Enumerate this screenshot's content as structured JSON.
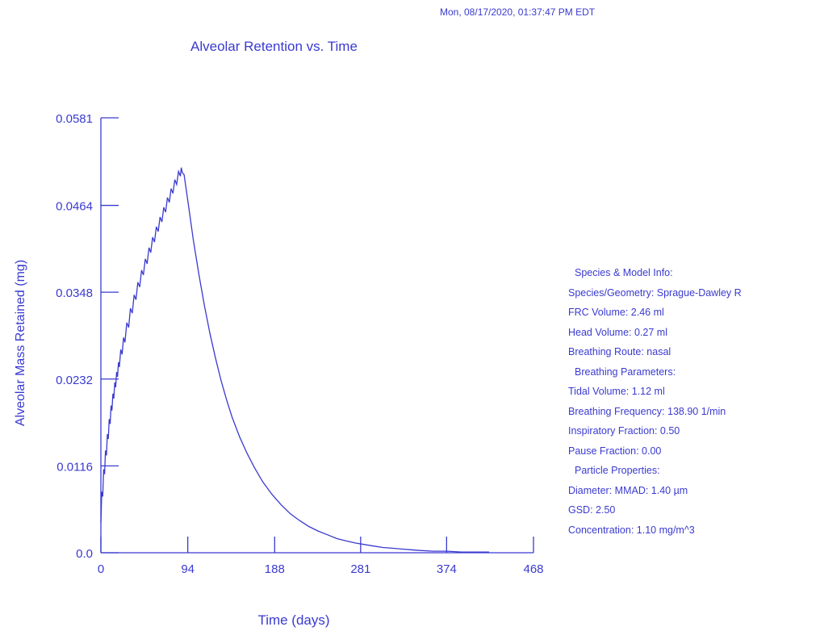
{
  "timestamp": "Mon, 08/17/2020, 01:37:47 PM EDT",
  "colors": {
    "ink": "#3a3ad0",
    "background": "#ffffff"
  },
  "chart_data": {
    "type": "line",
    "title": "Alveolar Retention vs. Time",
    "xlabel": "Time (days)",
    "ylabel": "Alveolar Mass Retained (mg)",
    "xlim": [
      0,
      468
    ],
    "ylim": [
      0,
      0.0581
    ],
    "x_ticks": [
      "0",
      "94",
      "188",
      "281",
      "374",
      "468"
    ],
    "y_ticks": [
      "0.0",
      "0.0116",
      "0.0232",
      "0.0348",
      "0.0464",
      "0.0581"
    ],
    "x_tick_values": [
      0,
      94,
      188,
      281,
      374,
      468
    ],
    "y_tick_values": [
      0,
      0.0116,
      0.0232,
      0.0348,
      0.0464,
      0.0581
    ],
    "grid": false,
    "legend": "none",
    "series": [
      {
        "x": [
          0,
          2,
          4,
          6,
          8,
          10,
          12,
          14,
          16,
          18,
          20,
          23,
          26,
          30,
          34,
          38,
          42,
          46,
          50,
          54,
          58,
          62,
          66,
          70,
          74,
          78,
          82,
          86,
          88,
          90,
          95,
          100,
          106,
          112,
          118,
          124,
          130,
          136,
          142,
          150,
          158,
          166,
          175,
          185,
          195,
          205,
          215,
          225,
          235,
          245,
          255,
          265,
          275,
          285,
          295,
          305,
          315,
          325,
          335,
          345,
          360,
          375,
          390,
          405,
          420
        ],
        "y": [
          0.004,
          0.0075,
          0.0105,
          0.013,
          0.0152,
          0.0172,
          0.019,
          0.0206,
          0.0221,
          0.0235,
          0.0248,
          0.0265,
          0.0281,
          0.0301,
          0.032,
          0.0338,
          0.0355,
          0.0371,
          0.0386,
          0.0401,
          0.0415,
          0.0429,
          0.0442,
          0.0455,
          0.0468,
          0.048,
          0.0492,
          0.0503,
          0.0508,
          0.0505,
          0.0462,
          0.0418,
          0.0372,
          0.033,
          0.0293,
          0.026,
          0.023,
          0.0204,
          0.0181,
          0.0155,
          0.0133,
          0.0114,
          0.0095,
          0.0078,
          0.0064,
          0.0052,
          0.0043,
          0.0035,
          0.0029,
          0.0024,
          0.0019,
          0.0016,
          0.0013,
          0.0011,
          0.0009,
          0.0007,
          0.0006,
          0.0005,
          0.0004,
          0.0003,
          0.0002,
          0.0002,
          0.0001,
          0.0001,
          0.0001
        ]
      }
    ]
  },
  "info": {
    "species_header": "Species & Model Info:",
    "species_geometry": "Species/Geometry: Sprague-Dawley R",
    "frc_volume": "FRC Volume: 2.46 ml",
    "head_volume": "Head Volume: 0.27 ml",
    "breathing_route": "Breathing Route: nasal",
    "breathing_header": "Breathing Parameters:",
    "tidal_volume": "Tidal Volume: 1.12 ml",
    "breathing_frequency": "Breathing Frequency: 138.90 1/min",
    "inspiratory_fraction": "Inspiratory Fraction: 0.50",
    "pause_fraction": "Pause Fraction: 0.00",
    "particle_header": "Particle Properties:",
    "diameter": "Diameter: MMAD: 1.40 µm",
    "gsd": "GSD: 2.50",
    "concentration": "Concentration: 1.10 mg/m^3"
  }
}
